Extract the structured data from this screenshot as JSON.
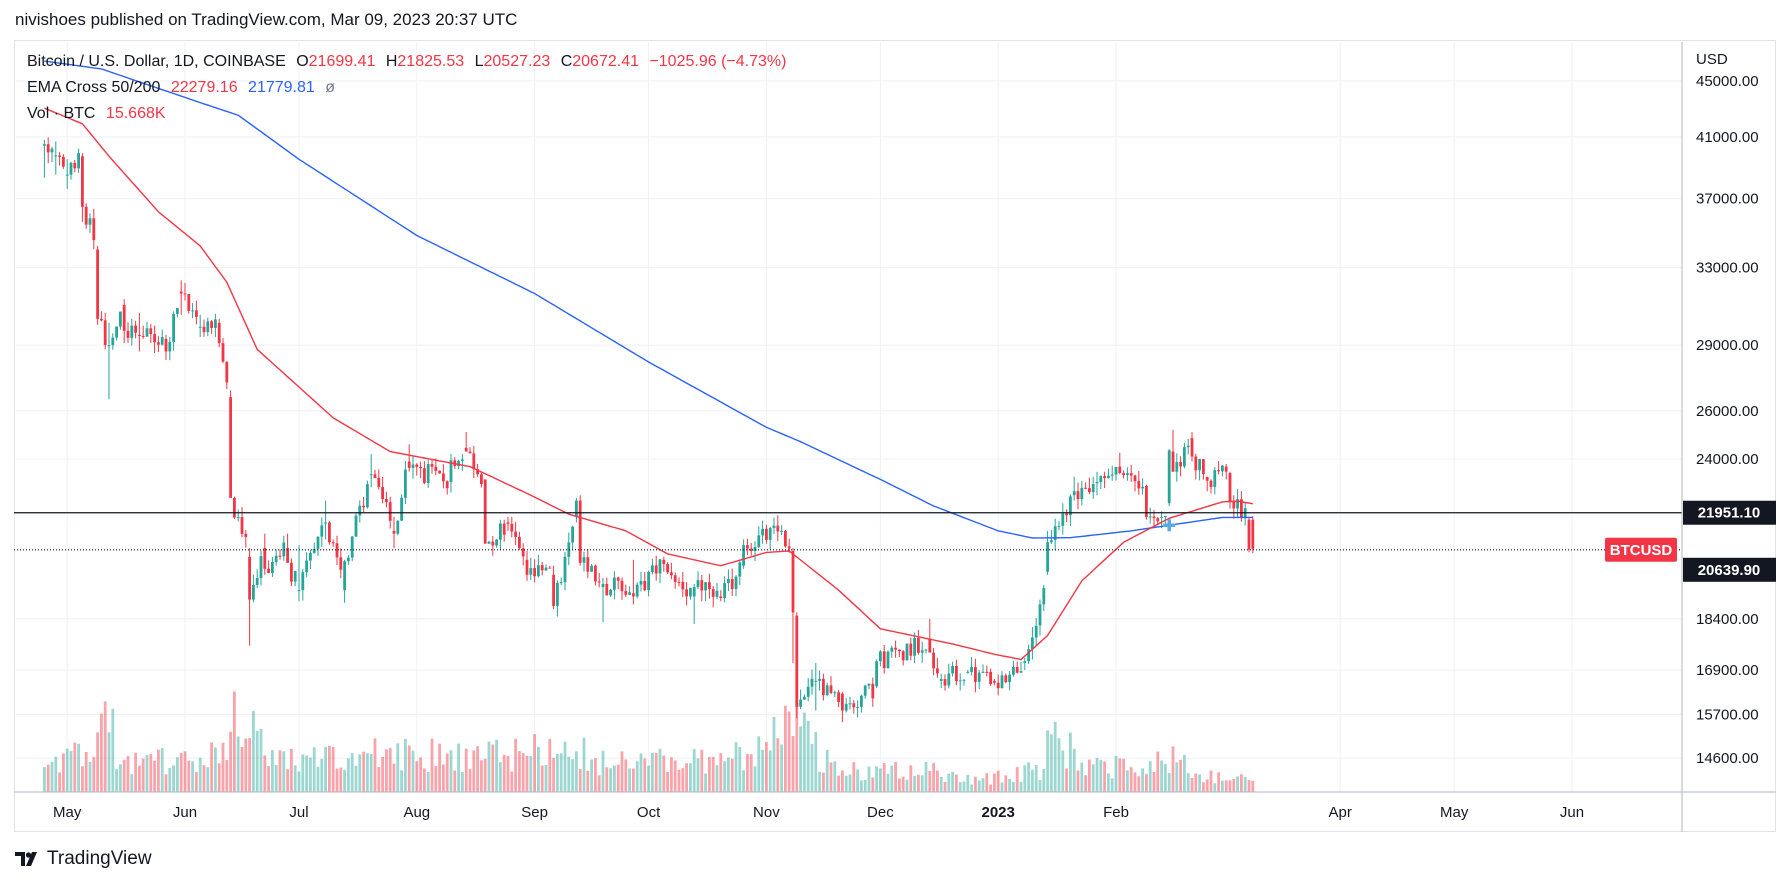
{
  "header": {
    "published": "nivishoes published on TradingView.com, Mar 09, 2023 20:37 UTC"
  },
  "legend": {
    "symbol": "Bitcoin / U.S. Dollar, 1D, COINBASE",
    "o_label": "O",
    "o": "21699.41",
    "h_label": "H",
    "h": "21825.53",
    "l_label": "L",
    "l": "20527.23",
    "c_label": "C",
    "c": "20672.41",
    "change": "−1025.96 (−4.73%)",
    "ema_title": "EMA Cross 50/200",
    "ema50": "22279.16",
    "ema200": "21779.81",
    "ema_icon": "ø",
    "vol_title": "Vol · BTC",
    "vol": "15.668K"
  },
  "footer": {
    "brand": "TradingView"
  },
  "colors": {
    "up": "#26a69a",
    "down": "#f23645",
    "ema50": "#f23645",
    "ema200": "#2962ff",
    "grid": "#eef1f6"
  },
  "chart_data": {
    "type": "candlestick",
    "title": "Bitcoin / U.S. Dollar, 1D, COINBASE",
    "ylabel": "USD",
    "scale": "log",
    "ylim": [
      13800,
      48000
    ],
    "y_ticks": [
      "45000.00",
      "41000.00",
      "37000.00",
      "33000.00",
      "29000.00",
      "26000.00",
      "24000.00",
      "18400.00",
      "16900.00",
      "15700.00",
      "14600.00"
    ],
    "x_ticks": [
      "May",
      "Jun",
      "Jul",
      "Aug",
      "Sep",
      "Oct",
      "Nov",
      "Dec",
      "2023",
      "Feb",
      "Apr",
      "May",
      "Jun"
    ],
    "horizontal_lines": [
      {
        "value": 21951.1,
        "label": "21951.10",
        "style": "solid"
      },
      {
        "value": 20639.9,
        "label": "20639.90",
        "style": "dotted"
      }
    ],
    "last_price_tag": "BTCUSD",
    "ohlc_anchors": [
      [
        "2022-04-25",
        40400,
        40800,
        38300,
        40500
      ],
      [
        "2022-04-28",
        39700,
        40700,
        38500,
        39750
      ],
      [
        "2022-05-01",
        38500,
        39500,
        37600,
        38500
      ],
      [
        "2022-05-05",
        39700,
        39900,
        35600,
        36500
      ],
      [
        "2022-05-09",
        34000,
        34200,
        30000,
        30300
      ],
      [
        "2022-05-12",
        29000,
        30100,
        26500,
        29000
      ],
      [
        "2022-05-16",
        31000,
        31300,
        29100,
        29700
      ],
      [
        "2022-05-20",
        29500,
        30600,
        28700,
        29450
      ],
      [
        "2022-05-27",
        29300,
        29500,
        28300,
        28700
      ],
      [
        "2022-05-31",
        31700,
        32300,
        30500,
        31600
      ],
      [
        "2022-06-05",
        29900,
        30500,
        29400,
        29900
      ],
      [
        "2022-06-10",
        30100,
        30300,
        28900,
        29100
      ],
      [
        "2022-06-13",
        26600,
        26900,
        22600,
        22500
      ],
      [
        "2022-06-18",
        20400,
        20700,
        17600,
        19000
      ],
      [
        "2022-06-22",
        20700,
        21200,
        19800,
        20000
      ],
      [
        "2022-06-28",
        20700,
        21200,
        20200,
        20200
      ],
      [
        "2022-07-01",
        19300,
        20800,
        18950,
        19300
      ],
      [
        "2022-07-08",
        21600,
        22400,
        21000,
        21600
      ],
      [
        "2022-07-13",
        19300,
        20300,
        18900,
        20250
      ],
      [
        "2022-07-20",
        23400,
        24200,
        22900,
        23400
      ],
      [
        "2022-07-26",
        21300,
        21800,
        20700,
        21200
      ],
      [
        "2022-07-30",
        23900,
        24600,
        23500,
        23650
      ],
      [
        "2022-08-10",
        23100,
        24200,
        22700,
        23950
      ],
      [
        "2022-08-14",
        24450,
        25100,
        24300,
        24300
      ],
      [
        "2022-08-19",
        23200,
        23200,
        20900,
        20850
      ],
      [
        "2022-08-25",
        21600,
        21800,
        21300,
        21550
      ],
      [
        "2022-08-30",
        20300,
        20600,
        19600,
        19800
      ],
      [
        "2022-09-06",
        19800,
        20100,
        18700,
        18800
      ],
      [
        "2022-09-12",
        21800,
        22500,
        21600,
        22400
      ],
      [
        "2022-09-13",
        22400,
        22600,
        20100,
        20200
      ],
      [
        "2022-09-19",
        19400,
        19700,
        18300,
        19500
      ],
      [
        "2022-09-27",
        19200,
        20300,
        18850,
        19100
      ],
      [
        "2022-10-05",
        20300,
        20400,
        19900,
        20160
      ],
      [
        "2022-10-13",
        19100,
        19500,
        18250,
        19400
      ],
      [
        "2022-10-20",
        19100,
        19300,
        18950,
        19050
      ],
      [
        "2022-10-26",
        20100,
        21000,
        20000,
        20800
      ],
      [
        "2022-11-05",
        21300,
        21500,
        21150,
        21300
      ],
      [
        "2022-11-08",
        20600,
        20700,
        17100,
        18600
      ],
      [
        "2022-11-09",
        18500,
        18600,
        15600,
        15900
      ],
      [
        "2022-11-14",
        16600,
        17100,
        15800,
        16600
      ],
      [
        "2022-11-21",
        16250,
        16300,
        15500,
        15800
      ],
      [
        "2022-11-30",
        16450,
        17200,
        16400,
        17150
      ],
      [
        "2022-12-14",
        17800,
        18400,
        17700,
        17400
      ],
      [
        "2022-12-17",
        16600,
        16800,
        16400,
        16650
      ],
      [
        "2022-12-24",
        16850,
        16900,
        16800,
        16850
      ],
      [
        "2022-12-31",
        16600,
        16650,
        16480,
        16550
      ],
      [
        "2023-01-08",
        17100,
        17250,
        16900,
        17150
      ],
      [
        "2023-01-12",
        18200,
        19000,
        17900,
        18850
      ],
      [
        "2023-01-14",
        19900,
        21300,
        19800,
        20900
      ],
      [
        "2023-01-21",
        22600,
        23300,
        22400,
        22750
      ],
      [
        "2023-01-27",
        23050,
        23500,
        22600,
        23100
      ],
      [
        "2023-02-02",
        23700,
        24250,
        23400,
        23450
      ],
      [
        "2023-02-09",
        22950,
        23000,
        21700,
        21800
      ],
      [
        "2023-02-13",
        21800,
        22000,
        21400,
        21800
      ],
      [
        "2023-02-15",
        22300,
        24400,
        22200,
        24350
      ],
      [
        "2023-02-16",
        24300,
        25200,
        23500,
        23500
      ],
      [
        "2023-02-21",
        24850,
        25100,
        23900,
        24100
      ],
      [
        "2023-02-25",
        23300,
        23300,
        22750,
        23150
      ],
      [
        "2023-03-02",
        23700,
        23800,
        23200,
        23500
      ],
      [
        "2023-03-03",
        23450,
        23500,
        22100,
        22350
      ],
      [
        "2023-03-08",
        21700,
        21800,
        20550,
        20650
      ],
      [
        "2023-03-09",
        21699.41,
        21825.53,
        20527.23,
        20672.41
      ]
    ],
    "ema50_anchors": [
      [
        "2022-04-25",
        43000
      ],
      [
        "2022-05-05",
        41900
      ],
      [
        "2022-05-12",
        39700
      ],
      [
        "2022-05-25",
        36200
      ],
      [
        "2022-06-05",
        34200
      ],
      [
        "2022-06-12",
        32200
      ],
      [
        "2022-06-20",
        28800
      ],
      [
        "2022-07-10",
        25700
      ],
      [
        "2022-07-25",
        24300
      ],
      [
        "2022-08-15",
        23700
      ],
      [
        "2022-08-31",
        22600
      ],
      [
        "2022-09-10",
        21900
      ],
      [
        "2022-09-25",
        21300
      ],
      [
        "2022-10-06",
        20500
      ],
      [
        "2022-10-20",
        20100
      ],
      [
        "2022-11-01",
        20550
      ],
      [
        "2022-11-07",
        20600
      ],
      [
        "2022-11-20",
        19300
      ],
      [
        "2022-12-01",
        18100
      ],
      [
        "2022-12-20",
        17650
      ],
      [
        "2022-12-31",
        17350
      ],
      [
        "2023-01-07",
        17200
      ],
      [
        "2023-01-14",
        17900
      ],
      [
        "2023-01-23",
        19600
      ],
      [
        "2023-02-03",
        20900
      ],
      [
        "2023-02-15",
        21750
      ],
      [
        "2023-03-01",
        22350
      ],
      [
        "2023-03-05",
        22380
      ],
      [
        "2023-03-09",
        22279.16
      ]
    ],
    "ema200_anchors": [
      [
        "2022-04-25",
        46500
      ],
      [
        "2022-05-10",
        45900
      ],
      [
        "2022-06-05",
        43400
      ],
      [
        "2022-06-15",
        42500
      ],
      [
        "2022-07-01",
        39500
      ],
      [
        "2022-08-01",
        34800
      ],
      [
        "2022-09-01",
        31600
      ],
      [
        "2022-10-01",
        28200
      ],
      [
        "2022-11-01",
        25300
      ],
      [
        "2022-11-10",
        24700
      ],
      [
        "2022-12-01",
        23200
      ],
      [
        "2022-12-15",
        22200
      ],
      [
        "2023-01-01",
        21300
      ],
      [
        "2023-01-10",
        21050
      ],
      [
        "2023-01-20",
        21060
      ],
      [
        "2023-02-05",
        21300
      ],
      [
        "2023-02-15",
        21500
      ],
      [
        "2023-03-01",
        21780
      ],
      [
        "2023-03-09",
        21779.81
      ]
    ],
    "volume_anchors": [
      [
        "2022-04-25",
        3
      ],
      [
        "2022-05-08",
        6
      ],
      [
        "2022-05-10",
        10
      ],
      [
        "2022-05-12",
        11
      ],
      [
        "2022-05-14",
        5
      ],
      [
        "2022-05-30",
        4
      ],
      [
        "2022-06-12",
        5
      ],
      [
        "2022-06-13",
        14
      ],
      [
        "2022-06-14",
        11
      ],
      [
        "2022-06-18",
        10
      ],
      [
        "2022-06-25",
        4
      ],
      [
        "2022-07-20",
        5
      ],
      [
        "2022-08-20",
        5
      ],
      [
        "2022-09-07",
        6
      ],
      [
        "2022-09-13",
        6
      ],
      [
        "2022-09-20",
        4
      ],
      [
        "2022-10-15",
        4
      ],
      [
        "2022-10-25",
        5
      ],
      [
        "2022-11-08",
        10
      ],
      [
        "2022-11-09",
        10
      ],
      [
        "2022-11-10",
        8
      ],
      [
        "2022-11-20",
        3
      ],
      [
        "2022-12-15",
        3
      ],
      [
        "2022-12-25",
        1.5
      ],
      [
        "2023-01-12",
        3
      ],
      [
        "2023-01-14",
        8
      ],
      [
        "2023-01-16",
        7
      ],
      [
        "2023-01-25",
        4
      ],
      [
        "2023-02-09",
        3
      ],
      [
        "2023-02-15",
        5
      ],
      [
        "2023-02-25",
        2
      ],
      [
        "2023-03-09",
        2.5
      ]
    ]
  }
}
